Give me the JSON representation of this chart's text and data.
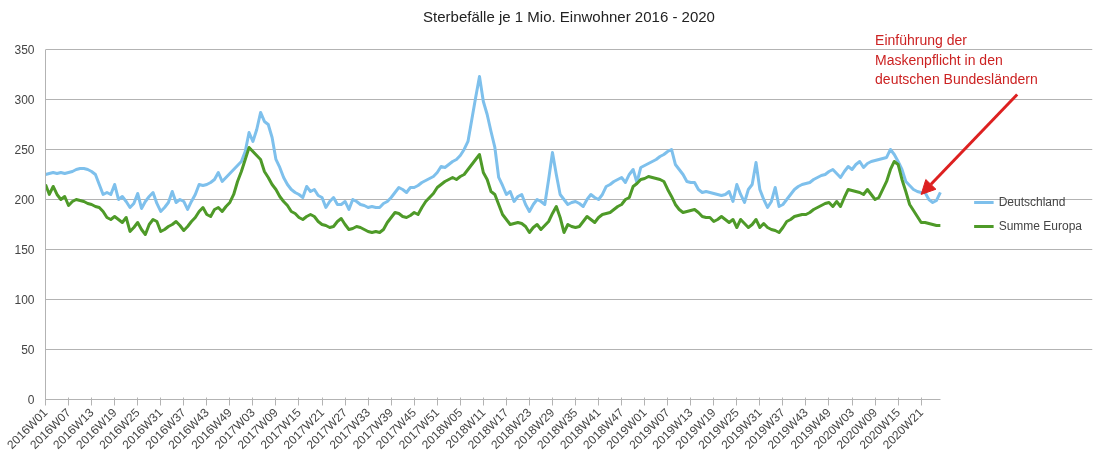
{
  "chart_data": {
    "type": "line",
    "title": "Sterbefälle je 1 Mio. Einwohner 2016 - 2020",
    "categories": [
      "2016W01",
      null,
      null,
      null,
      null,
      null,
      "2016W07",
      null,
      null,
      null,
      null,
      null,
      "2016W13",
      null,
      null,
      null,
      null,
      null,
      "2016W19",
      null,
      null,
      null,
      null,
      null,
      "2016W25",
      null,
      null,
      null,
      null,
      null,
      "2016W31",
      null,
      null,
      null,
      null,
      null,
      "2016W37",
      null,
      null,
      null,
      null,
      null,
      "2016W43",
      null,
      null,
      null,
      null,
      null,
      "2016W49",
      null,
      null,
      null,
      null,
      null,
      "2017W03",
      null,
      null,
      null,
      null,
      null,
      "2017W09",
      null,
      null,
      null,
      null,
      null,
      "2017W15",
      null,
      null,
      null,
      null,
      null,
      "2017W21",
      null,
      null,
      null,
      null,
      null,
      "2017W27",
      null,
      null,
      null,
      null,
      null,
      "2017W33",
      null,
      null,
      null,
      null,
      null,
      "2017W39",
      null,
      null,
      null,
      null,
      null,
      "2017W45",
      null,
      null,
      null,
      null,
      null,
      "2017W51",
      null,
      null,
      null,
      null,
      null,
      "2018W05",
      null,
      null,
      null,
      null,
      null,
      "2018W11",
      null,
      null,
      null,
      null,
      null,
      "2018W17",
      null,
      null,
      null,
      null,
      null,
      "2018W23",
      null,
      null,
      null,
      null,
      null,
      "2018W29",
      null,
      null,
      null,
      null,
      null,
      "2018W35",
      null,
      null,
      null,
      null,
      null,
      "2018W41",
      null,
      null,
      null,
      null,
      null,
      "2018W47",
      null,
      null,
      null,
      null,
      null,
      "2019W01",
      null,
      null,
      null,
      null,
      null,
      "2019W07",
      null,
      null,
      null,
      null,
      null,
      "2019W13",
      null,
      null,
      null,
      null,
      null,
      "2019W19",
      null,
      null,
      null,
      null,
      null,
      "2019W25",
      null,
      null,
      null,
      null,
      null,
      "2019W31",
      null,
      null,
      null,
      null,
      null,
      "2019W37",
      null,
      null,
      null,
      null,
      null,
      "2019W43",
      null,
      null,
      null,
      null,
      null,
      "2019W49",
      null,
      null,
      null,
      null,
      null,
      "2020W03",
      null,
      null,
      null,
      null,
      null,
      "2020W09",
      null,
      null,
      null,
      null,
      null,
      "2020W15",
      null,
      null,
      null,
      null,
      null,
      "2020W21",
      null,
      null,
      null,
      null,
      null
    ],
    "series": [
      {
        "name": "Deutschland",
        "color": "#7ec0ec",
        "values": [
          225,
          226,
          227,
          226,
          227,
          226,
          227,
          228,
          230,
          231,
          231,
          230,
          228,
          225,
          215,
          205,
          207,
          205,
          215,
          200,
          203,
          198,
          192,
          196,
          206,
          191,
          198,
          203,
          207,
          196,
          188,
          192,
          197,
          208,
          197,
          200,
          198,
          190,
          198,
          205,
          215,
          214,
          215,
          217,
          220,
          227,
          218,
          222,
          226,
          230,
          234,
          238,
          248,
          267,
          258,
          270,
          287,
          278,
          275,
          262,
          240,
          232,
          222,
          215,
          210,
          207,
          205,
          202,
          213,
          208,
          210,
          204,
          202,
          192,
          198,
          202,
          195,
          195,
          198,
          190,
          200,
          198,
          195,
          194,
          192,
          193,
          192,
          192,
          196,
          198,
          202,
          207,
          212,
          210,
          207,
          212,
          212,
          214,
          217,
          219,
          221,
          223,
          227,
          233,
          232,
          235,
          238,
          240,
          244,
          250,
          258,
          280,
          302,
          323,
          298,
          285,
          268,
          252,
          222,
          214,
          205,
          208,
          198,
          203,
          205,
          195,
          188,
          195,
          200,
          198,
          195,
          220,
          247,
          225,
          205,
          200,
          195,
          197,
          198,
          196,
          193,
          200,
          205,
          202,
          200,
          205,
          213,
          215,
          218,
          220,
          222,
          217,
          225,
          230,
          217,
          232,
          234,
          236,
          238,
          240,
          243,
          245,
          248,
          250,
          235,
          230,
          225,
          218,
          217,
          217,
          210,
          207,
          208,
          207,
          206,
          205,
          204,
          205,
          208,
          198,
          215,
          205,
          197,
          210,
          215,
          237,
          210,
          200,
          192,
          198,
          212,
          193,
          195,
          200,
          205,
          210,
          213,
          215,
          216,
          217,
          220,
          222,
          224,
          225,
          228,
          230,
          226,
          222,
          228,
          233,
          230,
          235,
          238,
          232,
          236,
          238,
          239,
          240,
          241,
          242,
          250,
          245,
          238,
          230,
          218,
          214,
          210,
          208,
          207,
          207,
          200,
          197,
          199,
          207
        ]
      },
      {
        "name": "Summe Europa",
        "color": "#4e9a28",
        "values": [
          215,
          205,
          213,
          205,
          200,
          203,
          194,
          198,
          200,
          199,
          198,
          196,
          195,
          193,
          192,
          188,
          182,
          180,
          183,
          180,
          177,
          182,
          168,
          172,
          177,
          170,
          165,
          175,
          180,
          178,
          168,
          170,
          173,
          175,
          178,
          174,
          169,
          173,
          178,
          182,
          188,
          192,
          185,
          183,
          190,
          192,
          188,
          193,
          197,
          205,
          218,
          228,
          240,
          252,
          248,
          244,
          240,
          228,
          222,
          215,
          210,
          203,
          198,
          194,
          188,
          186,
          182,
          180,
          183,
          185,
          183,
          178,
          175,
          174,
          172,
          173,
          178,
          181,
          175,
          170,
          171,
          173,
          172,
          170,
          168,
          167,
          168,
          167,
          170,
          177,
          182,
          187,
          186,
          183,
          182,
          184,
          187,
          185,
          192,
          198,
          202,
          206,
          212,
          215,
          218,
          220,
          222,
          220,
          223,
          225,
          230,
          235,
          240,
          245,
          227,
          220,
          208,
          205,
          195,
          185,
          180,
          175,
          176,
          177,
          176,
          173,
          167,
          172,
          175,
          170,
          174,
          178,
          186,
          193,
          182,
          167,
          175,
          173,
          172,
          173,
          178,
          183,
          180,
          177,
          182,
          185,
          186,
          187,
          190,
          193,
          195,
          200,
          202,
          213,
          216,
          220,
          221,
          223,
          222,
          221,
          220,
          218,
          210,
          203,
          195,
          190,
          187,
          188,
          189,
          190,
          187,
          183,
          182,
          182,
          178,
          180,
          183,
          180,
          177,
          180,
          172,
          180,
          176,
          172,
          175,
          180,
          172,
          176,
          172,
          170,
          169,
          167,
          172,
          178,
          180,
          183,
          184,
          185,
          185,
          187,
          190,
          192,
          194,
          196,
          197,
          193,
          198,
          193,
          202,
          210,
          209,
          208,
          207,
          205,
          210,
          205,
          200,
          202,
          210,
          218,
          230,
          238,
          235,
          220,
          208,
          195,
          189,
          183,
          177,
          177,
          176,
          175,
          174,
          174
        ]
      }
    ],
    "ylim": [
      0,
      350
    ],
    "yticks": [
      0,
      50,
      100,
      150,
      200,
      250,
      300,
      350
    ],
    "grid": "y",
    "legend": "right",
    "annotations": [
      {
        "text": "Einführung der\nMaskenpflicht in den\ndeutschen Bundesländern",
        "x": "2020W21",
        "y": 205
      }
    ]
  }
}
